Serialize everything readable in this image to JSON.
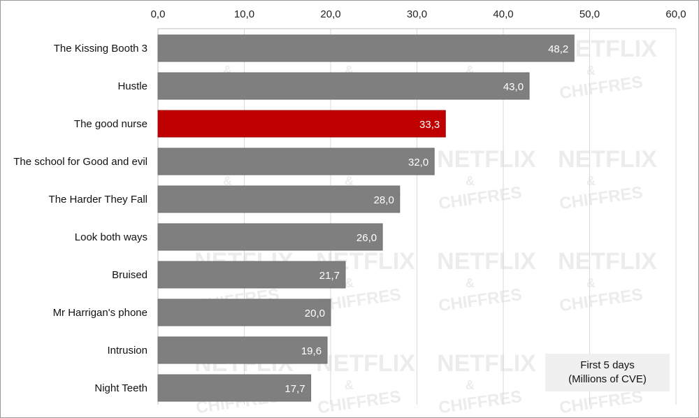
{
  "chart_data": {
    "type": "bar",
    "orientation": "horizontal",
    "categories": [
      "The Kissing Booth 3",
      "Hustle",
      "The good nurse",
      "The school for Good and evil",
      "The Harder They Fall",
      "Look both ways",
      "Bruised",
      "Mr Harrigan's phone",
      "Intrusion",
      "Night Teeth"
    ],
    "values": [
      48.2,
      43.0,
      33.3,
      32.0,
      28.0,
      26.0,
      21.7,
      20.0,
      19.6,
      17.7
    ],
    "value_labels": [
      "48,2",
      "43,0",
      "33,3",
      "32,0",
      "28,0",
      "26,0",
      "21,7",
      "20,0",
      "19,6",
      "17,7"
    ],
    "x_ticks": [
      "0,0",
      "10,0",
      "20,0",
      "30,0",
      "40,0",
      "50,0",
      "60,0"
    ],
    "xlim": [
      0,
      60
    ],
    "x_axis_position": "top",
    "grid": true,
    "highlight_index": 2,
    "colors": {
      "bar": "#7f7f7f",
      "highlight": "#c00000",
      "grid": "#d9d9d9"
    },
    "annotation": [
      "First 5 days",
      "(Millions of CVE)"
    ],
    "watermark": [
      "NETFLIX",
      "&",
      "CHIFFRES"
    ]
  }
}
